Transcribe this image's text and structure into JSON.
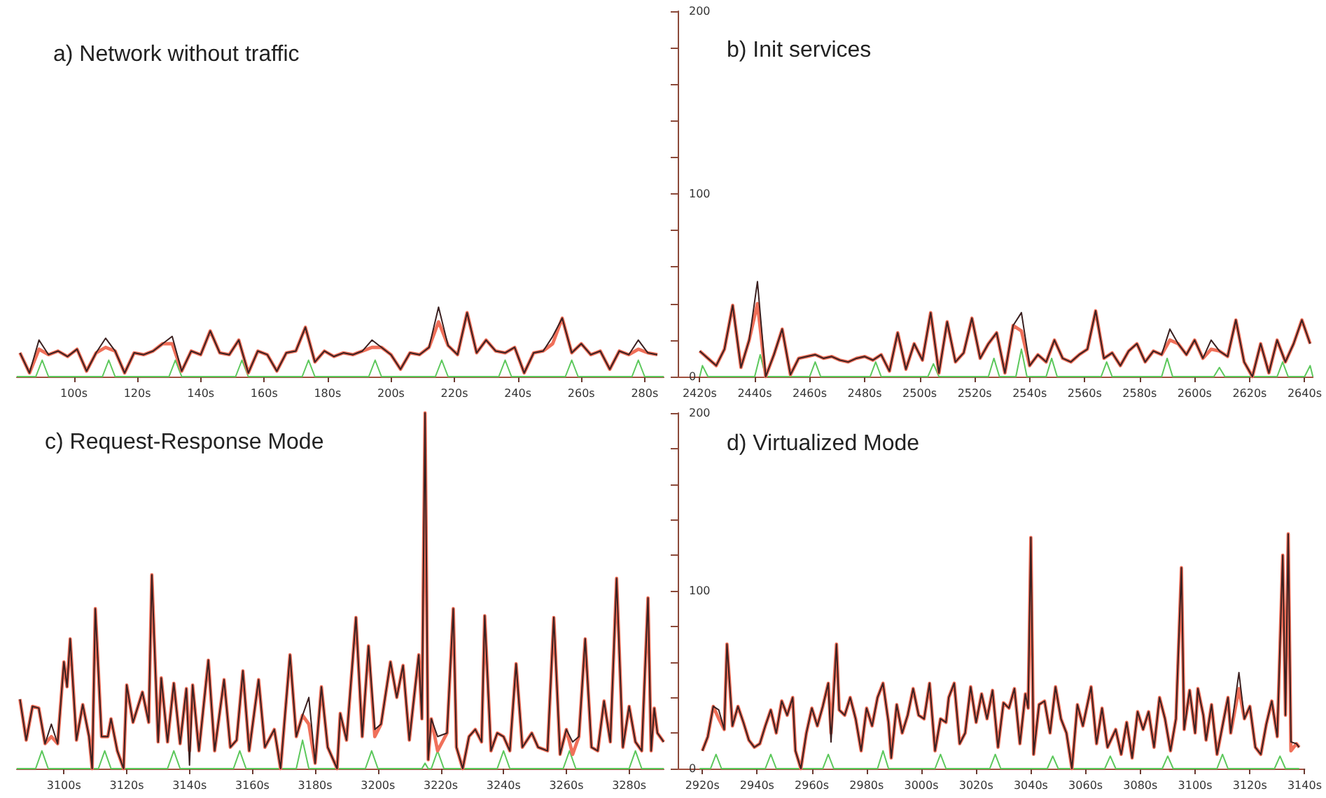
{
  "chart_data": [
    {
      "type": "line",
      "title": "a) Network without traffic",
      "xlim": [
        82,
        286
      ],
      "ylim": [
        0,
        200
      ],
      "tick_labels": "x",
      "marker": "none",
      "xticks": [
        {
          "value": 100,
          "label": "100s"
        },
        {
          "value": 120,
          "label": "120s"
        },
        {
          "value": 140,
          "label": "140s"
        },
        {
          "value": 160,
          "label": "160s"
        },
        {
          "value": 180,
          "label": "180s"
        },
        {
          "value": 200,
          "label": "200s"
        },
        {
          "value": 220,
          "label": "220s"
        },
        {
          "value": 240,
          "label": "240s"
        },
        {
          "value": 260,
          "label": "260s"
        },
        {
          "value": 280,
          "label": "280s"
        }
      ],
      "x": [
        83,
        86,
        89,
        92,
        95,
        98,
        101,
        104,
        107,
        110,
        113,
        116,
        119,
        122,
        125,
        128,
        131,
        134,
        137,
        140,
        143,
        146,
        149,
        152,
        155,
        158,
        161,
        164,
        167,
        170,
        173,
        176,
        179,
        182,
        185,
        188,
        191,
        194,
        197,
        200,
        203,
        206,
        209,
        212,
        215,
        218,
        221,
        224,
        227,
        230,
        233,
        236,
        239,
        242,
        245,
        248,
        251,
        254,
        257,
        260,
        263,
        266,
        269,
        272,
        275,
        278,
        281,
        284
      ],
      "series": [
        {
          "color": "#5cc85c",
          "x": [
            82,
            88,
            90,
            92,
            109,
            111,
            113,
            130,
            132,
            134,
            151,
            153,
            155,
            172,
            174,
            176,
            193,
            195,
            197,
            214,
            216,
            218,
            234,
            236,
            238,
            255,
            257,
            259,
            276,
            278,
            280,
            286
          ],
          "values": [
            0,
            0,
            9,
            0,
            0,
            9,
            0,
            0,
            9,
            0,
            0,
            9,
            0,
            0,
            9,
            0,
            0,
            9,
            0,
            0,
            9,
            0,
            0,
            9,
            0,
            0,
            9,
            0,
            0,
            9,
            0,
            0
          ]
        },
        {
          "color": "#f0705a",
          "values": [
            13,
            2,
            15,
            12,
            14,
            11,
            15,
            3,
            13,
            16,
            14,
            2,
            13,
            12,
            14,
            18,
            18,
            3,
            14,
            12,
            25,
            13,
            12,
            20,
            2,
            14,
            12,
            3,
            13,
            14,
            27,
            8,
            14,
            11,
            13,
            12,
            14,
            16,
            16,
            12,
            4,
            13,
            12,
            16,
            30,
            17,
            12,
            35,
            13,
            20,
            14,
            13,
            16,
            2,
            13,
            14,
            18,
            32,
            13,
            18,
            12,
            14,
            4,
            14,
            12,
            15,
            13,
            12
          ]
        },
        {
          "color": "#3a2020",
          "values": [
            13,
            2,
            20,
            12,
            14,
            11,
            15,
            3,
            13,
            21,
            14,
            2,
            13,
            12,
            14,
            18,
            22,
            3,
            14,
            12,
            25,
            13,
            12,
            20,
            2,
            14,
            12,
            3,
            13,
            14,
            27,
            8,
            14,
            11,
            13,
            12,
            14,
            20,
            16,
            12,
            4,
            13,
            12,
            16,
            38,
            17,
            12,
            35,
            13,
            20,
            14,
            13,
            16,
            2,
            13,
            14,
            22,
            32,
            13,
            18,
            12,
            14,
            4,
            14,
            12,
            20,
            13,
            12
          ]
        }
      ]
    },
    {
      "type": "line",
      "title": "b) Init services",
      "xlim": [
        2412,
        2643
      ],
      "ylim": [
        0,
        200
      ],
      "marker": "none",
      "yticks": [
        0,
        {
          "value": 20,
          "label": null
        },
        {
          "value": 40,
          "label": null
        },
        {
          "value": 60,
          "label": null
        },
        {
          "value": 80,
          "label": null
        },
        100,
        {
          "value": 120,
          "label": null
        },
        {
          "value": 140,
          "label": null
        },
        {
          "value": 160,
          "label": null
        },
        {
          "value": 180,
          "label": null
        },
        200
      ],
      "xticks": [
        {
          "value": 2420,
          "label": "2420s"
        },
        {
          "value": 2440,
          "label": "2440s"
        },
        {
          "value": 2460,
          "label": "2460s"
        },
        {
          "value": 2480,
          "label": "2480s"
        },
        {
          "value": 2500,
          "label": "2500s"
        },
        {
          "value": 2520,
          "label": "2520s"
        },
        {
          "value": 2540,
          "label": "2540s"
        },
        {
          "value": 2560,
          "label": "2560s"
        },
        {
          "value": 2580,
          "label": "2580s"
        },
        {
          "value": 2600,
          "label": "2600s"
        },
        {
          "value": 2620,
          "label": "2620s"
        },
        {
          "value": 2640,
          "label": "2640s"
        }
      ],
      "x": [
        2420,
        2423,
        2426,
        2429,
        2432,
        2435,
        2438,
        2441,
        2444,
        2447,
        2450,
        2453,
        2456,
        2459,
        2462,
        2465,
        2468,
        2471,
        2474,
        2477,
        2480,
        2483,
        2486,
        2489,
        2492,
        2495,
        2498,
        2501,
        2504,
        2507,
        2510,
        2513,
        2516,
        2519,
        2522,
        2525,
        2528,
        2531,
        2534,
        2537,
        2540,
        2543,
        2546,
        2549,
        2552,
        2555,
        2558,
        2561,
        2564,
        2567,
        2570,
        2573,
        2576,
        2579,
        2582,
        2585,
        2588,
        2591,
        2594,
        2597,
        2600,
        2603,
        2606,
        2609,
        2612,
        2615,
        2618,
        2621,
        2624,
        2627,
        2630,
        2633,
        2636,
        2639,
        2642
      ],
      "series": [
        {
          "color": "#5cc85c",
          "x": [
            2420,
            2421,
            2423,
            2440,
            2442,
            2444,
            2460,
            2462,
            2464,
            2482,
            2484,
            2486,
            2503,
            2505,
            2507,
            2525,
            2527,
            2529,
            2535,
            2537,
            2539,
            2546,
            2548,
            2550,
            2566,
            2568,
            2570,
            2588,
            2590,
            2592,
            2607,
            2609,
            2611,
            2630,
            2632,
            2634,
            2640,
            2642,
            2643
          ],
          "values": [
            0,
            6,
            0,
            0,
            12,
            0,
            0,
            8,
            0,
            0,
            8,
            0,
            0,
            7,
            0,
            0,
            10,
            0,
            0,
            15,
            0,
            0,
            10,
            0,
            0,
            8,
            0,
            0,
            10,
            0,
            0,
            5,
            0,
            0,
            8,
            0,
            0,
            6,
            0
          ]
        },
        {
          "color": "#f0705a",
          "values": [
            14,
            10,
            6,
            15,
            39,
            5,
            20,
            40,
            0,
            12,
            26,
            1,
            10,
            11,
            12,
            10,
            11,
            9,
            8,
            10,
            11,
            9,
            12,
            3,
            24,
            4,
            18,
            9,
            35,
            2,
            30,
            8,
            13,
            32,
            10,
            18,
            24,
            2,
            28,
            25,
            6,
            12,
            8,
            20,
            10,
            8,
            12,
            15,
            36,
            10,
            13,
            6,
            14,
            18,
            8,
            14,
            12,
            20,
            18,
            12,
            20,
            10,
            15,
            14,
            11,
            31,
            8,
            0,
            18,
            2,
            20,
            8,
            18,
            31,
            18
          ]
        },
        {
          "color": "#3a2020",
          "values": [
            14,
            10,
            6,
            15,
            39,
            5,
            20,
            52,
            0,
            12,
            26,
            1,
            10,
            11,
            12,
            10,
            11,
            9,
            8,
            10,
            11,
            9,
            12,
            3,
            24,
            4,
            18,
            9,
            35,
            2,
            30,
            8,
            13,
            32,
            10,
            18,
            24,
            2,
            28,
            35,
            6,
            12,
            8,
            20,
            10,
            8,
            12,
            15,
            36,
            10,
            13,
            6,
            14,
            18,
            8,
            14,
            12,
            26,
            18,
            12,
            20,
            10,
            20,
            14,
            11,
            31,
            8,
            0,
            18,
            2,
            20,
            8,
            18,
            31,
            18
          ]
        }
      ]
    },
    {
      "type": "line",
      "title": "c) Request-Response Mode",
      "xlim": [
        3085,
        3291
      ],
      "ylim": [
        0,
        200
      ],
      "tick_labels": "x",
      "marker": "none",
      "xticks": [
        {
          "value": 3100,
          "label": "3100s"
        },
        {
          "value": 3120,
          "label": "3120s"
        },
        {
          "value": 3140,
          "label": "3140s"
        },
        {
          "value": 3160,
          "label": "3160s"
        },
        {
          "value": 3180,
          "label": "3180s"
        },
        {
          "value": 3200,
          "label": "3200s"
        },
        {
          "value": 3220,
          "label": "3220s"
        },
        {
          "value": 3240,
          "label": "3240s"
        },
        {
          "value": 3260,
          "label": "3260s"
        },
        {
          "value": 3280,
          "label": "3280s"
        }
      ],
      "x": [
        3086,
        3088,
        3090,
        3092,
        3094,
        3096,
        3098,
        3100,
        3101,
        3102,
        3104,
        3106,
        3108,
        3109,
        3110,
        3112,
        3114,
        3115,
        3117,
        3119,
        3120,
        3122,
        3125,
        3127,
        3128,
        3130,
        3131,
        3133,
        3135,
        3137,
        3139,
        3140,
        3141,
        3143,
        3146,
        3148,
        3151,
        3153,
        3155,
        3157,
        3159,
        3162,
        3164,
        3167,
        3169,
        3172,
        3174,
        3176,
        3178,
        3180,
        3182,
        3184,
        3187,
        3188,
        3190,
        3193,
        3195,
        3197,
        3199,
        3201,
        3204,
        3206,
        3208,
        3210,
        3213,
        3214,
        3215,
        3216,
        3217,
        3219,
        3222,
        3224,
        3225,
        3227,
        3229,
        3231,
        3233,
        3234,
        3236,
        3238,
        3240,
        3242,
        3244,
        3246,
        3249,
        3251,
        3254,
        3256,
        3258,
        3260,
        3262,
        3264,
        3266,
        3268,
        3270,
        3272,
        3274,
        3276,
        3278,
        3280,
        3282,
        3284,
        3286,
        3287,
        3288,
        3289,
        3291
      ],
      "series": [
        {
          "color": "#5cc85c",
          "x": [
            3085,
            3091,
            3093,
            3095,
            3111,
            3113,
            3115,
            3133,
            3135,
            3137,
            3154,
            3156,
            3158,
            3174,
            3176,
            3178,
            3196,
            3198,
            3200,
            3214,
            3215,
            3216,
            3217,
            3219,
            3221,
            3238,
            3240,
            3242,
            3259,
            3261,
            3263,
            3280,
            3282,
            3284,
            3291
          ],
          "values": [
            0,
            0,
            10,
            0,
            0,
            10,
            0,
            0,
            10,
            0,
            0,
            10,
            0,
            0,
            16,
            0,
            0,
            10,
            0,
            0,
            3,
            0,
            0,
            10,
            0,
            0,
            10,
            0,
            0,
            10,
            0,
            0,
            10,
            0,
            0
          ]
        },
        {
          "color": "#f0705a",
          "values": [
            39,
            16,
            35,
            34,
            14,
            18,
            14,
            60,
            46,
            73,
            16,
            36,
            18,
            0,
            90,
            18,
            18,
            28,
            10,
            0,
            47,
            26,
            43,
            26,
            109,
            15,
            51,
            15,
            48,
            14,
            45,
            10,
            47,
            10,
            61,
            10,
            50,
            12,
            16,
            55,
            10,
            50,
            12,
            22,
            0,
            64,
            18,
            30,
            25,
            3,
            46,
            12,
            0,
            31,
            16,
            85,
            18,
            69,
            18,
            25,
            60,
            40,
            58,
            16,
            64,
            28,
            200,
            5,
            28,
            10,
            20,
            90,
            12,
            0,
            18,
            22,
            15,
            86,
            10,
            20,
            18,
            10,
            59,
            12,
            20,
            12,
            10,
            85,
            8,
            22,
            8,
            18,
            73,
            12,
            10,
            38,
            15,
            107,
            12,
            35,
            15,
            10,
            96,
            10,
            34,
            20,
            15
          ]
        },
        {
          "color": "#3a2020",
          "values": [
            39,
            16,
            35,
            34,
            14,
            25,
            14,
            60,
            46,
            73,
            16,
            36,
            18,
            0,
            90,
            18,
            18,
            28,
            10,
            0,
            47,
            26,
            43,
            26,
            109,
            15,
            51,
            15,
            48,
            14,
            45,
            2,
            47,
            10,
            61,
            10,
            50,
            12,
            16,
            55,
            10,
            50,
            12,
            22,
            0,
            64,
            18,
            30,
            40,
            3,
            46,
            12,
            0,
            31,
            16,
            85,
            18,
            69,
            22,
            25,
            60,
            40,
            58,
            16,
            64,
            28,
            200,
            5,
            28,
            18,
            20,
            90,
            12,
            0,
            18,
            22,
            15,
            86,
            10,
            20,
            18,
            10,
            59,
            12,
            20,
            12,
            10,
            85,
            8,
            22,
            15,
            18,
            73,
            12,
            10,
            38,
            15,
            107,
            12,
            35,
            15,
            10,
            96,
            10,
            34,
            20,
            15
          ]
        }
      ]
    },
    {
      "type": "line",
      "title": "d) Virtualized Mode",
      "xlim": [
        2911,
        3140
      ],
      "ylim": [
        0,
        200
      ],
      "marker": "none",
      "yticks": [
        0,
        {
          "value": 20,
          "label": null
        },
        {
          "value": 40,
          "label": null
        },
        {
          "value": 60,
          "label": null
        },
        {
          "value": 80,
          "label": null
        },
        100,
        {
          "value": 120,
          "label": null
        },
        {
          "value": 140,
          "label": null
        },
        {
          "value": 160,
          "label": null
        },
        {
          "value": 180,
          "label": null
        },
        200
      ],
      "xticks": [
        {
          "value": 2920,
          "label": "2920s"
        },
        {
          "value": 2940,
          "label": "2940s"
        },
        {
          "value": 2960,
          "label": "2960s"
        },
        {
          "value": 2980,
          "label": "2980s"
        },
        {
          "value": 3000,
          "label": "3000s"
        },
        {
          "value": 3020,
          "label": "3020s"
        },
        {
          "value": 3040,
          "label": "3040s"
        },
        {
          "value": 3060,
          "label": "3060s"
        },
        {
          "value": 3080,
          "label": "3080s"
        },
        {
          "value": 3100,
          "label": "3100s"
        },
        {
          "value": 3120,
          "label": "3120s"
        },
        {
          "value": 3140,
          "label": "3140s"
        }
      ],
      "x": [
        2920,
        2922,
        2924,
        2926,
        2928,
        2929,
        2931,
        2933,
        2935,
        2937,
        2939,
        2941,
        2943,
        2945,
        2947,
        2949,
        2951,
        2953,
        2954,
        2956,
        2958,
        2960,
        2962,
        2964,
        2966,
        2967,
        2969,
        2970,
        2972,
        2974,
        2976,
        2978,
        2980,
        2982,
        2984,
        2986,
        2988,
        2989,
        2991,
        2993,
        2995,
        2997,
        2999,
        3001,
        3003,
        3005,
        3007,
        3009,
        3010,
        3012,
        3014,
        3016,
        3018,
        3020,
        3022,
        3024,
        3026,
        3028,
        3030,
        3032,
        3034,
        3036,
        3038,
        3039,
        3040,
        3041,
        3043,
        3045,
        3047,
        3049,
        3051,
        3053,
        3055,
        3057,
        3059,
        3062,
        3064,
        3066,
        3068,
        3071,
        3073,
        3075,
        3077,
        3079,
        3081,
        3083,
        3085,
        3087,
        3089,
        3091,
        3093,
        3095,
        3096,
        3098,
        3100,
        3101,
        3103,
        3104,
        3106,
        3108,
        3110,
        3112,
        3113,
        3116,
        3118,
        3120,
        3122,
        3124,
        3126,
        3128,
        3130,
        3132,
        3133,
        3134,
        3135,
        3137,
        3138
      ],
      "series": [
        {
          "color": "#5cc85c",
          "x": [
            2919,
            2923,
            2925,
            2927,
            2943,
            2945,
            2947,
            2964,
            2966,
            2968,
            2984,
            2986,
            2988,
            3005,
            3007,
            3009,
            3025,
            3027,
            3029,
            3046,
            3048,
            3050,
            3067,
            3069,
            3071,
            3088,
            3090,
            3092,
            3108,
            3110,
            3112,
            3129,
            3131,
            3133,
            3138
          ],
          "values": [
            0,
            0,
            8,
            0,
            0,
            8,
            0,
            0,
            8,
            0,
            0,
            10,
            0,
            0,
            8,
            0,
            0,
            8,
            0,
            0,
            7,
            0,
            0,
            7,
            0,
            0,
            7,
            0,
            0,
            8,
            0,
            0,
            7,
            0,
            0
          ]
        },
        {
          "color": "#f0705a",
          "values": [
            10,
            18,
            35,
            28,
            22,
            70,
            24,
            35,
            26,
            16,
            12,
            14,
            24,
            33,
            20,
            38,
            30,
            40,
            10,
            0,
            20,
            34,
            24,
            35,
            48,
            20,
            70,
            33,
            30,
            40,
            28,
            10,
            34,
            24,
            40,
            48,
            26,
            6,
            36,
            20,
            30,
            45,
            30,
            28,
            48,
            10,
            28,
            26,
            40,
            48,
            14,
            20,
            46,
            26,
            42,
            28,
            44,
            12,
            37,
            34,
            45,
            14,
            42,
            34,
            130,
            8,
            36,
            38,
            20,
            46,
            28,
            20,
            0,
            36,
            24,
            46,
            14,
            34,
            12,
            22,
            8,
            26,
            6,
            32,
            22,
            32,
            12,
            40,
            28,
            10,
            28,
            113,
            22,
            44,
            20,
            45,
            30,
            16,
            36,
            8,
            24,
            40,
            20,
            45,
            28,
            35,
            12,
            8,
            25,
            38,
            18,
            120,
            30,
            132,
            10,
            14,
            12
          ]
        },
        {
          "color": "#3a2020",
          "values": [
            10,
            18,
            35,
            33,
            22,
            70,
            24,
            35,
            26,
            16,
            12,
            14,
            24,
            33,
            20,
            38,
            30,
            40,
            10,
            0,
            20,
            34,
            24,
            35,
            48,
            15,
            70,
            33,
            30,
            40,
            28,
            10,
            34,
            24,
            40,
            48,
            26,
            6,
            36,
            20,
            30,
            45,
            30,
            28,
            48,
            10,
            28,
            26,
            40,
            48,
            14,
            20,
            46,
            26,
            42,
            28,
            44,
            12,
            37,
            34,
            45,
            14,
            42,
            34,
            130,
            8,
            36,
            38,
            20,
            46,
            28,
            20,
            0,
            36,
            24,
            46,
            14,
            34,
            12,
            22,
            8,
            26,
            6,
            32,
            22,
            32,
            12,
            40,
            28,
            10,
            28,
            113,
            22,
            44,
            20,
            45,
            30,
            16,
            36,
            8,
            24,
            40,
            20,
            54,
            28,
            35,
            12,
            8,
            25,
            38,
            18,
            120,
            30,
            132,
            15,
            14,
            12
          ]
        }
      ]
    }
  ]
}
